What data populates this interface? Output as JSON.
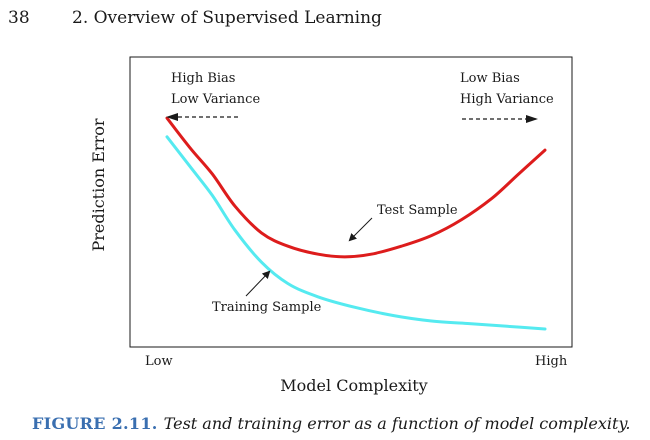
{
  "header": {
    "page_number": "38",
    "running_title": "2.  Overview of Supervised Learning"
  },
  "chart_data": {
    "type": "line",
    "title": "",
    "xlabel": "Model Complexity",
    "ylabel": "Prediction Error",
    "x_tick_labels": {
      "low": "Low",
      "high": "High"
    },
    "xlim": [
      0,
      1
    ],
    "ylim": [
      0,
      1
    ],
    "grid": false,
    "series": [
      {
        "name": "Test Sample",
        "color": "#dd1c1c",
        "x": [
          0.0,
          0.06,
          0.12,
          0.18,
          0.25,
          0.32,
          0.4,
          0.47,
          0.54,
          0.62,
          0.7,
          0.78,
          0.86,
          0.93,
          1.0
        ],
        "y": [
          0.82,
          0.71,
          0.61,
          0.49,
          0.39,
          0.34,
          0.31,
          0.3,
          0.31,
          0.34,
          0.38,
          0.44,
          0.52,
          0.61,
          0.7
        ]
      },
      {
        "name": "Training Sample",
        "color": "#55eaf0",
        "x": [
          0.0,
          0.06,
          0.12,
          0.18,
          0.25,
          0.32,
          0.4,
          0.5,
          0.6,
          0.7,
          0.8,
          0.9,
          1.0
        ],
        "y": [
          0.75,
          0.64,
          0.53,
          0.4,
          0.28,
          0.2,
          0.15,
          0.11,
          0.08,
          0.06,
          0.05,
          0.04,
          0.03
        ]
      }
    ],
    "annotations": {
      "left_corner": [
        "High Bias",
        "Low Variance"
      ],
      "right_corner": [
        "Low Bias",
        "High Variance"
      ],
      "test_label": "Test Sample",
      "train_label": "Training Sample"
    }
  },
  "caption": {
    "label": "FIGURE 2.11.",
    "text": "Test and training error as a function of model complexity."
  }
}
